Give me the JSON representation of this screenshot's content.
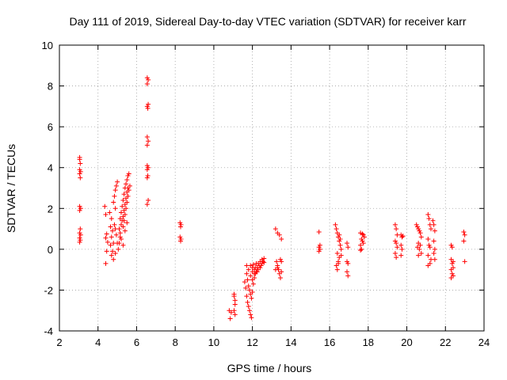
{
  "chart_data": {
    "type": "scatter",
    "title": "Day 111 of 2019, Sidereal Day-to-day VTEC variation (SDTVAR) for receiver karr",
    "xlabel": "GPS time / hours",
    "ylabel": "SDTVAR / TECUs",
    "xlim": [
      2,
      24
    ],
    "ylim": [
      -4,
      10
    ],
    "xticks": [
      2,
      4,
      6,
      8,
      10,
      12,
      14,
      16,
      18,
      20,
      22,
      24
    ],
    "yticks": [
      -4,
      -2,
      0,
      2,
      4,
      6,
      8,
      10
    ],
    "grid": true,
    "marker": "+",
    "color": "#ff0000",
    "series": [
      {
        "name": "SDTVAR",
        "points": [
          [
            3.05,
            4.5
          ],
          [
            3.05,
            4.4
          ],
          [
            3.08,
            4.2
          ],
          [
            3.05,
            3.9
          ],
          [
            3.1,
            3.8
          ],
          [
            3.05,
            3.7
          ],
          [
            3.08,
            3.5
          ],
          [
            3.05,
            2.1
          ],
          [
            3.1,
            2.0
          ],
          [
            3.05,
            1.9
          ],
          [
            3.08,
            1.0
          ],
          [
            3.05,
            0.8
          ],
          [
            3.1,
            0.7
          ],
          [
            3.05,
            0.55
          ],
          [
            3.08,
            0.45
          ],
          [
            3.05,
            0.35
          ],
          [
            4.35,
            2.1
          ],
          [
            4.4,
            1.7
          ],
          [
            4.45,
            0.75
          ],
          [
            4.4,
            0.55
          ],
          [
            4.5,
            0.35
          ],
          [
            4.45,
            -0.1
          ],
          [
            4.4,
            -0.7
          ],
          [
            4.6,
            1.8
          ],
          [
            4.7,
            1.5
          ],
          [
            4.65,
            1.1
          ],
          [
            4.75,
            0.9
          ],
          [
            4.7,
            0.6
          ],
          [
            4.8,
            0.3
          ],
          [
            4.65,
            0.2
          ],
          [
            4.75,
            -0.1
          ],
          [
            4.7,
            -0.3
          ],
          [
            4.8,
            -0.5
          ],
          [
            4.85,
            1.2
          ],
          [
            4.9,
            1.0
          ],
          [
            4.95,
            0.7
          ],
          [
            5.0,
            0.3
          ],
          [
            5.05,
            0.0
          ],
          [
            4.9,
            -0.2
          ],
          [
            4.8,
            2.3
          ],
          [
            4.85,
            2.6
          ],
          [
            4.9,
            2.9
          ],
          [
            4.95,
            3.1
          ],
          [
            5.0,
            3.3
          ],
          [
            4.9,
            2.0
          ],
          [
            5.1,
            1.0
          ],
          [
            5.15,
            1.5
          ],
          [
            5.2,
            1.8
          ],
          [
            5.25,
            2.1
          ],
          [
            5.3,
            2.4
          ],
          [
            5.35,
            2.7
          ],
          [
            5.4,
            3.0
          ],
          [
            5.45,
            3.2
          ],
          [
            5.5,
            3.4
          ],
          [
            5.55,
            3.6
          ],
          [
            5.6,
            3.7
          ],
          [
            5.15,
            0.8
          ],
          [
            5.2,
            1.2
          ],
          [
            5.25,
            1.4
          ],
          [
            5.3,
            1.6
          ],
          [
            5.35,
            1.9
          ],
          [
            5.4,
            2.2
          ],
          [
            5.45,
            2.5
          ],
          [
            5.5,
            2.8
          ],
          [
            5.55,
            3.0
          ],
          [
            5.3,
            1.1
          ],
          [
            5.35,
            1.4
          ],
          [
            5.4,
            1.7
          ],
          [
            5.45,
            2.0
          ],
          [
            5.5,
            2.3
          ],
          [
            5.55,
            2.6
          ],
          [
            5.6,
            2.9
          ],
          [
            5.65,
            3.1
          ],
          [
            5.1,
            0.3
          ],
          [
            5.15,
            0.6
          ],
          [
            5.2,
            0.5
          ],
          [
            5.4,
            0.9
          ],
          [
            5.5,
            1.3
          ],
          [
            5.3,
            0.2
          ],
          [
            6.55,
            8.4
          ],
          [
            6.6,
            8.3
          ],
          [
            6.55,
            8.1
          ],
          [
            6.6,
            7.1
          ],
          [
            6.55,
            7.0
          ],
          [
            6.58,
            6.9
          ],
          [
            6.55,
            5.5
          ],
          [
            6.6,
            5.3
          ],
          [
            6.55,
            5.1
          ],
          [
            6.55,
            4.1
          ],
          [
            6.6,
            4.0
          ],
          [
            6.55,
            3.9
          ],
          [
            6.58,
            3.6
          ],
          [
            6.55,
            3.5
          ],
          [
            6.6,
            2.4
          ],
          [
            6.55,
            2.2
          ],
          [
            8.25,
            1.3
          ],
          [
            8.3,
            1.2
          ],
          [
            8.28,
            1.1
          ],
          [
            8.25,
            0.6
          ],
          [
            8.3,
            0.5
          ],
          [
            8.28,
            0.4
          ],
          [
            10.85,
            -3.4
          ],
          [
            10.8,
            -3.0
          ],
          [
            10.9,
            -3.1
          ],
          [
            11.05,
            -2.3
          ],
          [
            11.1,
            -2.5
          ],
          [
            11.05,
            -2.2
          ],
          [
            11.1,
            -2.7
          ],
          [
            11.05,
            -3.0
          ],
          [
            11.1,
            -3.2
          ],
          [
            11.6,
            -1.6
          ],
          [
            11.65,
            -1.9
          ],
          [
            11.7,
            -2.3
          ],
          [
            11.75,
            -2.6
          ],
          [
            11.8,
            -2.8
          ],
          [
            11.85,
            -3.0
          ],
          [
            11.9,
            -3.2
          ],
          [
            11.95,
            -3.35
          ],
          [
            11.7,
            -1.2
          ],
          [
            11.75,
            -1.5
          ],
          [
            11.8,
            -1.8
          ],
          [
            11.85,
            -2.0
          ],
          [
            11.9,
            -2.2
          ],
          [
            11.95,
            -2.4
          ],
          [
            12.0,
            -2.1
          ],
          [
            11.7,
            -0.8
          ],
          [
            11.8,
            -1.0
          ],
          [
            11.9,
            -1.3
          ],
          [
            12.0,
            -1.5
          ],
          [
            12.05,
            -1.7
          ],
          [
            12.1,
            -1.4
          ],
          [
            12.15,
            -1.2
          ],
          [
            11.9,
            -0.8
          ],
          [
            12.0,
            -0.9
          ],
          [
            12.1,
            -1.0
          ],
          [
            12.2,
            -1.1
          ],
          [
            12.25,
            -0.9
          ],
          [
            12.3,
            -1.0
          ],
          [
            12.35,
            -0.8
          ],
          [
            12.4,
            -0.9
          ],
          [
            12.3,
            -0.7
          ],
          [
            12.4,
            -0.6
          ],
          [
            12.5,
            -0.5
          ],
          [
            12.6,
            -0.45
          ],
          [
            12.5,
            -0.7
          ],
          [
            12.45,
            -0.8
          ],
          [
            12.55,
            -0.6
          ],
          [
            12.6,
            -0.65
          ],
          [
            12.05,
            -0.75
          ],
          [
            12.2,
            -0.7
          ],
          [
            12.15,
            -0.9
          ],
          [
            12.25,
            -1.1
          ],
          [
            12.1,
            -1.2
          ],
          [
            12.0,
            -1.1
          ],
          [
            13.2,
            1.0
          ],
          [
            13.3,
            0.8
          ],
          [
            13.4,
            0.7
          ],
          [
            13.5,
            0.5
          ],
          [
            13.25,
            -0.6
          ],
          [
            13.3,
            -0.8
          ],
          [
            13.35,
            -1.0
          ],
          [
            13.4,
            -1.2
          ],
          [
            13.45,
            -1.4
          ],
          [
            13.3,
            -0.9
          ],
          [
            13.5,
            -0.6
          ],
          [
            13.5,
            -1.1
          ],
          [
            13.2,
            -1.0
          ],
          [
            13.45,
            -0.5
          ],
          [
            15.45,
            0.85
          ],
          [
            15.5,
            0.2
          ],
          [
            15.45,
            0.1
          ],
          [
            15.5,
            0.0
          ],
          [
            15.45,
            -0.1
          ],
          [
            16.3,
            1.2
          ],
          [
            16.35,
            1.0
          ],
          [
            16.4,
            0.8
          ],
          [
            16.45,
            0.6
          ],
          [
            16.5,
            0.4
          ],
          [
            16.55,
            0.2
          ],
          [
            16.6,
            0.0
          ],
          [
            16.4,
            -0.2
          ],
          [
            16.5,
            -0.4
          ],
          [
            16.45,
            -0.6
          ],
          [
            16.35,
            -0.8
          ],
          [
            16.4,
            -1.0
          ],
          [
            16.5,
            0.7
          ],
          [
            16.55,
            0.5
          ],
          [
            16.6,
            -0.3
          ],
          [
            16.45,
            -0.7
          ],
          [
            16.9,
            0.3
          ],
          [
            16.95,
            0.1
          ],
          [
            16.9,
            -0.6
          ],
          [
            16.95,
            -0.7
          ],
          [
            16.9,
            -1.1
          ],
          [
            16.95,
            -1.3
          ],
          [
            17.6,
            0.8
          ],
          [
            17.7,
            0.75
          ],
          [
            17.75,
            0.7
          ],
          [
            17.8,
            0.6
          ],
          [
            17.65,
            0.5
          ],
          [
            17.7,
            0.4
          ],
          [
            17.75,
            0.3
          ],
          [
            17.6,
            0.2
          ],
          [
            17.65,
            0.0
          ],
          [
            17.6,
            -0.05
          ],
          [
            19.4,
            1.2
          ],
          [
            19.45,
            1.0
          ],
          [
            19.5,
            0.7
          ],
          [
            19.4,
            0.4
          ],
          [
            19.45,
            0.3
          ],
          [
            19.5,
            0.1
          ],
          [
            19.4,
            -0.2
          ],
          [
            19.45,
            -0.4
          ],
          [
            19.7,
            0.7
          ],
          [
            19.75,
            0.6
          ],
          [
            19.8,
            0.65
          ],
          [
            19.7,
            0.2
          ],
          [
            19.75,
            0.0
          ],
          [
            19.7,
            -0.3
          ],
          [
            20.5,
            1.2
          ],
          [
            20.55,
            1.1
          ],
          [
            20.6,
            1.0
          ],
          [
            20.65,
            0.9
          ],
          [
            20.7,
            0.8
          ],
          [
            20.75,
            0.6
          ],
          [
            20.6,
            0.3
          ],
          [
            20.7,
            0.2
          ],
          [
            20.55,
            0.1
          ],
          [
            20.65,
            0.0
          ],
          [
            20.75,
            -0.2
          ],
          [
            20.6,
            -0.3
          ],
          [
            21.1,
            1.7
          ],
          [
            21.15,
            1.5
          ],
          [
            21.2,
            1.2
          ],
          [
            21.25,
            1.0
          ],
          [
            21.1,
            0.5
          ],
          [
            21.15,
            0.2
          ],
          [
            21.2,
            0.1
          ],
          [
            21.1,
            -0.3
          ],
          [
            21.25,
            -0.5
          ],
          [
            21.2,
            -0.7
          ],
          [
            21.1,
            -0.8
          ],
          [
            21.35,
            1.4
          ],
          [
            21.4,
            1.2
          ],
          [
            21.45,
            0.9
          ],
          [
            21.4,
            0.4
          ],
          [
            21.45,
            0.0
          ],
          [
            21.4,
            -0.2
          ],
          [
            21.45,
            -0.5
          ],
          [
            22.3,
            0.2
          ],
          [
            22.35,
            0.1
          ],
          [
            22.3,
            -0.5
          ],
          [
            22.35,
            -0.7
          ],
          [
            22.4,
            -0.9
          ],
          [
            22.3,
            -1.0
          ],
          [
            22.35,
            -1.2
          ],
          [
            22.4,
            -1.3
          ],
          [
            22.3,
            -1.4
          ],
          [
            22.4,
            -0.6
          ],
          [
            22.95,
            0.85
          ],
          [
            23.0,
            0.7
          ],
          [
            22.95,
            0.4
          ],
          [
            23.0,
            -0.6
          ]
        ]
      }
    ]
  }
}
